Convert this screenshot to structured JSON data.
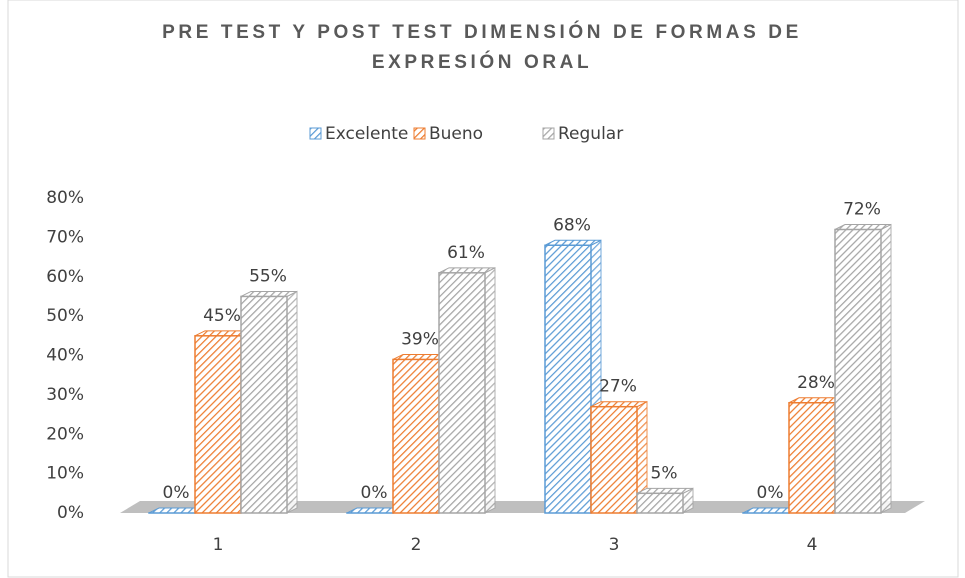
{
  "chart_data": {
    "type": "bar3d",
    "title": "PRE TEST Y POST TEST DIMENSIÓN DE FORMAS DE EXPRESIÓN ORAL",
    "categories": [
      "1",
      "2",
      "3",
      "4"
    ],
    "series": [
      {
        "name": "Excelente",
        "color": "#5b9bd5",
        "values": [
          0,
          0,
          68,
          0
        ],
        "value_labels": [
          "0%",
          "0%",
          "68%",
          "0%"
        ]
      },
      {
        "name": "Bueno",
        "color": "#ed7d31",
        "values": [
          45,
          39,
          27,
          28
        ],
        "value_labels": [
          "45%",
          "39%",
          "27%",
          "28%"
        ]
      },
      {
        "name": "Regular",
        "color": "#a5a5a5",
        "values": [
          55,
          61,
          5,
          72
        ],
        "value_labels": [
          "55%",
          "61%",
          "5%",
          "72%"
        ]
      }
    ],
    "ylim": [
      0,
      80
    ],
    "yticks": [
      {
        "value": 0,
        "label": "0%"
      },
      {
        "value": 10,
        "label": "10%"
      },
      {
        "value": 20,
        "label": "20%"
      },
      {
        "value": 30,
        "label": "30%"
      },
      {
        "value": 40,
        "label": "40%"
      },
      {
        "value": 50,
        "label": "50%"
      },
      {
        "value": 60,
        "label": "60%"
      },
      {
        "value": 70,
        "label": "70%"
      },
      {
        "value": 80,
        "label": "80%"
      }
    ],
    "grid": false,
    "legend": "top"
  }
}
